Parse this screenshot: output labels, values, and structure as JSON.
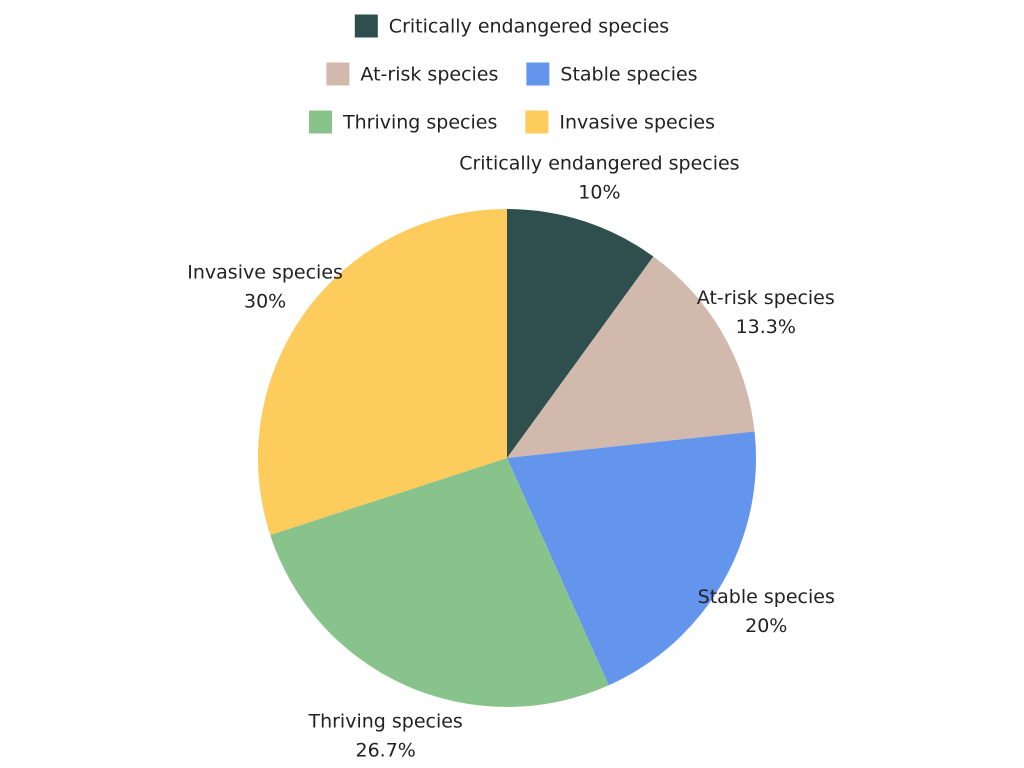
{
  "chart_data": {
    "type": "pie",
    "title": "",
    "categories": [
      "Critically endangered species",
      "At-risk species",
      "Stable species",
      "Thriving species",
      "Invasive species"
    ],
    "values": [
      10,
      13.3,
      20,
      26.7,
      30
    ],
    "value_labels": [
      "10%",
      "13.3%",
      "20%",
      "26.7%",
      "30%"
    ],
    "colors": [
      "#2F4F4F",
      "#D2B9AE",
      "#6495ED",
      "#88C38B",
      "#FECB5D"
    ],
    "legend_placement": "top",
    "start_angle": "12 o'clock",
    "direction": "clockwise"
  }
}
